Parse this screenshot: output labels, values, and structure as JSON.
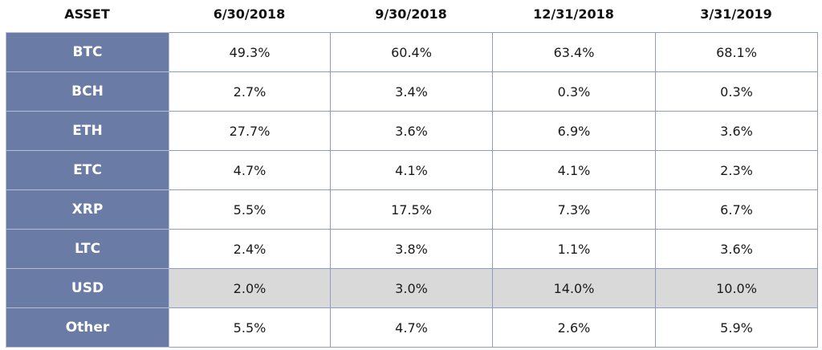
{
  "table": {
    "header": [
      "ASSET",
      "6/30/2018",
      "9/30/2018",
      "12/31/2018",
      "3/31/2019"
    ],
    "rows": [
      [
        "BTC",
        "49.3%",
        "60.4%",
        "63.4%",
        "68.1%"
      ],
      [
        "BCH",
        "2.7%",
        "3.4%",
        "0.3%",
        "0.3%"
      ],
      [
        "ETH",
        "27.7%",
        "3.6%",
        "6.9%",
        "3.6%"
      ],
      [
        "ETC",
        "4.7%",
        "4.1%",
        "4.1%",
        "2.3%"
      ],
      [
        "XRP",
        "5.5%",
        "17.5%",
        "7.3%",
        "6.7%"
      ],
      [
        "LTC",
        "2.4%",
        "3.8%",
        "1.1%",
        "3.6%"
      ],
      [
        "USD",
        "2.0%",
        "3.0%",
        "14.0%",
        "10.0%"
      ],
      [
        "Other",
        "5.5%",
        "4.7%",
        "2.6%",
        "5.9%"
      ]
    ]
  }
}
